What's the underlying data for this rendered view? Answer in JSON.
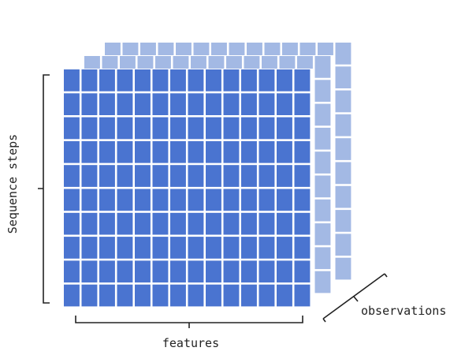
{
  "labels": {
    "y_axis": "Sequence steps",
    "x_axis": "features",
    "depth_axis": "observations"
  },
  "grid": {
    "rows": 10,
    "cols": 14,
    "layers": 3
  },
  "colors": {
    "front": "#4a74d0",
    "back": "#a3b9e4",
    "gap": "#ffffff",
    "bracket": "#222222",
    "text": "#222222"
  }
}
